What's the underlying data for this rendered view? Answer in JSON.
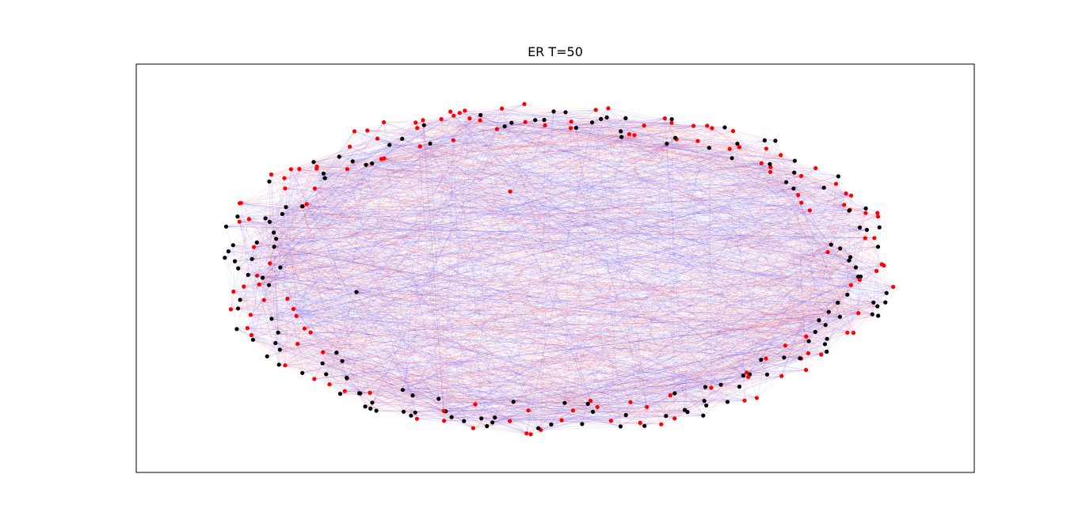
{
  "figure": {
    "title": "ER T=50"
  },
  "chart_data": {
    "type": "network-graph",
    "title": "ER T=50",
    "xlabel": "",
    "ylabel": "",
    "ticks_visible": false,
    "layout": "circular-ellipse",
    "colors": {
      "node_class_a": "#ff0000",
      "node_class_b": "#000000",
      "edges_same_class": "#ff0000",
      "edges_cross_class": "#0000ff",
      "frame": "#000000",
      "background": "#ffffff"
    },
    "node_classes": [
      "red",
      "black"
    ]
  }
}
